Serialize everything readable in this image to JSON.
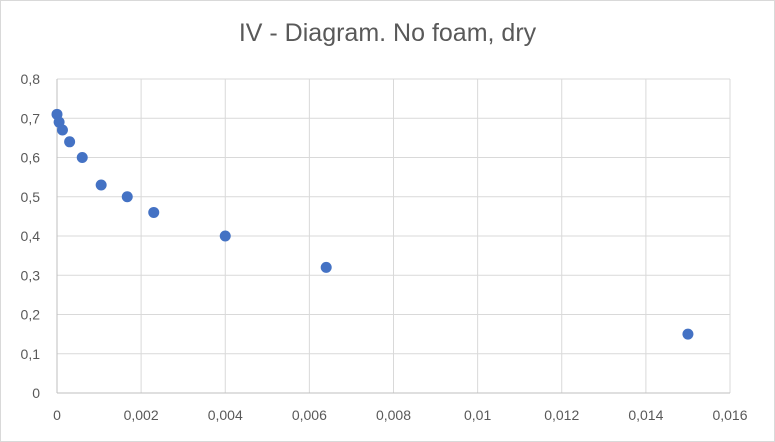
{
  "chart_data": {
    "type": "scatter",
    "title": "IV - Diagram. No foam, dry",
    "xlabel": "",
    "ylabel": "",
    "xlim": [
      0,
      0.016
    ],
    "ylim": [
      0,
      0.8
    ],
    "x_ticks": [
      0,
      0.002,
      0.004,
      0.006,
      0.008,
      0.01,
      0.012,
      0.014,
      0.016
    ],
    "x_tick_labels": [
      "0",
      "0,002",
      "0,004",
      "0,006",
      "0,008",
      "0,01",
      "0,012",
      "0,014",
      "0,016"
    ],
    "y_ticks": [
      0,
      0.1,
      0.2,
      0.3,
      0.4,
      0.5,
      0.6,
      0.7,
      0.8
    ],
    "y_tick_labels": [
      "0",
      "0,1",
      "0,2",
      "0,3",
      "0,4",
      "0,5",
      "0,6",
      "0,7",
      "0,8"
    ],
    "grid": true,
    "legend": "none",
    "series": [
      {
        "color": "#4472c4",
        "points": [
          {
            "x": 0.0,
            "y": 0.71
          },
          {
            "x": 5e-05,
            "y": 0.69
          },
          {
            "x": 0.00013,
            "y": 0.67
          },
          {
            "x": 0.0003,
            "y": 0.64
          },
          {
            "x": 0.0006,
            "y": 0.6
          },
          {
            "x": 0.00105,
            "y": 0.53
          },
          {
            "x": 0.00167,
            "y": 0.5
          },
          {
            "x": 0.0023,
            "y": 0.46
          },
          {
            "x": 0.004,
            "y": 0.4
          },
          {
            "x": 0.0064,
            "y": 0.32
          },
          {
            "x": 0.015,
            "y": 0.15
          }
        ]
      }
    ],
    "colors": {
      "grid": "#d9d9d9",
      "axis": "#bfbfbf",
      "text": "#595959"
    }
  }
}
